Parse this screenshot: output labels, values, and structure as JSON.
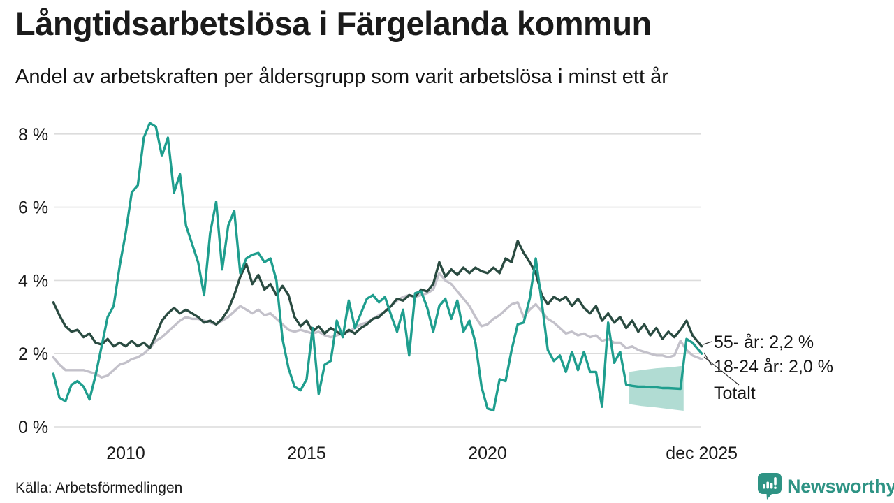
{
  "header": {
    "title": "Långtidsarbetslösa i Färgelanda kommun",
    "subtitle": "Andel av arbetskraften per åldersgrupp som varit arbetslösa i minst ett år"
  },
  "footer": {
    "source": "Källa: Arbetsförmedlingen",
    "logo_text": "Newsworthy"
  },
  "colors": {
    "accent_teal": "#1F9E8E",
    "dark_green": "#2A4B41",
    "gray": "#C3C1CA",
    "band": "#A9D8CE",
    "grid": "#DCDCDC",
    "text": "#1A1A1A",
    "leader": "#333333",
    "logo_teal": "#2E9384"
  },
  "chart_data": {
    "type": "line",
    "unit": "%",
    "grid": true,
    "x_start": 2008,
    "x_end": 2025.92,
    "points_per_year": 6,
    "ylim": [
      0,
      8.6
    ],
    "y_ticks": [
      {
        "value": 0,
        "label": "0 %"
      },
      {
        "value": 2,
        "label": "2 %"
      },
      {
        "value": 4,
        "label": "4 %"
      },
      {
        "value": 6,
        "label": "6 %"
      },
      {
        "value": 8,
        "label": "8 %"
      }
    ],
    "x_ticks": [
      {
        "value": 2010,
        "label": "2010"
      },
      {
        "value": 2015,
        "label": "2015"
      },
      {
        "value": 2020,
        "label": "2020"
      },
      {
        "value": 2025.92,
        "label": "dec 2025"
      }
    ],
    "series": [
      {
        "id": "totalt",
        "name": "Totalt",
        "color": "#C3C1CA",
        "values": [
          1.9,
          1.7,
          1.55,
          1.55,
          1.55,
          1.55,
          1.5,
          1.45,
          1.35,
          1.4,
          1.55,
          1.7,
          1.75,
          1.85,
          1.9,
          2.0,
          2.15,
          2.35,
          2.45,
          2.6,
          2.75,
          2.9,
          3.0,
          2.95,
          2.95,
          2.9,
          2.85,
          2.8,
          2.9,
          3.0,
          3.15,
          3.3,
          3.2,
          3.1,
          3.2,
          3.05,
          3.1,
          2.95,
          2.8,
          2.65,
          2.6,
          2.65,
          2.6,
          2.55,
          2.6,
          2.5,
          2.45,
          2.5,
          2.55,
          2.6,
          2.7,
          2.8,
          2.85,
          2.95,
          3.05,
          3.15,
          3.3,
          3.45,
          3.55,
          3.6,
          3.55,
          3.6,
          3.65,
          3.75,
          4.2,
          4.0,
          3.9,
          3.7,
          3.5,
          3.3,
          3.0,
          2.75,
          2.8,
          2.95,
          3.05,
          3.2,
          3.35,
          3.4,
          3.0,
          3.2,
          3.35,
          3.15,
          2.95,
          2.85,
          2.7,
          2.55,
          2.6,
          2.5,
          2.55,
          2.45,
          2.5,
          2.35,
          2.4,
          2.3,
          2.3,
          2.15,
          2.2,
          2.1,
          2.05,
          2.0,
          1.95,
          1.95,
          1.9,
          1.95,
          2.35,
          2.1,
          1.95,
          1.85
        ]
      },
      {
        "id": "55-ar",
        "name": "55- år",
        "end_value": "2,2 %",
        "color": "#2A4B41",
        "values": [
          3.4,
          3.05,
          2.75,
          2.6,
          2.65,
          2.45,
          2.55,
          2.3,
          2.25,
          2.4,
          2.2,
          2.3,
          2.2,
          2.35,
          2.2,
          2.3,
          2.15,
          2.5,
          2.9,
          3.1,
          3.25,
          3.1,
          3.2,
          3.1,
          3.0,
          2.85,
          2.9,
          2.8,
          2.95,
          3.2,
          3.6,
          4.1,
          4.45,
          3.9,
          4.15,
          3.75,
          3.9,
          3.6,
          3.85,
          3.6,
          3.0,
          2.75,
          2.9,
          2.6,
          2.75,
          2.55,
          2.7,
          2.6,
          2.5,
          2.65,
          2.55,
          2.7,
          2.8,
          2.95,
          3.0,
          3.15,
          3.3,
          3.5,
          3.45,
          3.6,
          3.55,
          3.75,
          3.7,
          3.9,
          4.5,
          4.1,
          4.3,
          4.15,
          4.35,
          4.2,
          4.35,
          4.25,
          4.2,
          4.35,
          4.2,
          4.6,
          4.5,
          5.08,
          4.75,
          4.5,
          4.2,
          3.6,
          3.35,
          3.55,
          3.45,
          3.55,
          3.3,
          3.5,
          3.25,
          3.1,
          3.3,
          2.9,
          3.1,
          2.85,
          3.0,
          2.7,
          2.9,
          2.6,
          2.8,
          2.5,
          2.7,
          2.4,
          2.6,
          2.45,
          2.65,
          2.9,
          2.5,
          2.2
        ]
      },
      {
        "id": "18-24-ar",
        "name": "18-24 år",
        "end_value": "2,0 %",
        "color": "#1F9E8E",
        "values": [
          1.45,
          0.8,
          0.7,
          1.15,
          1.25,
          1.1,
          0.75,
          1.4,
          2.2,
          3.0,
          3.3,
          4.4,
          5.3,
          6.4,
          6.6,
          7.9,
          8.3,
          8.2,
          7.4,
          7.9,
          6.4,
          6.9,
          5.5,
          5.0,
          4.5,
          3.6,
          5.3,
          6.15,
          4.3,
          5.5,
          5.9,
          4.2,
          4.6,
          4.7,
          4.75,
          4.5,
          4.6,
          4.0,
          2.4,
          1.6,
          1.1,
          1.0,
          1.3,
          2.7,
          0.9,
          1.7,
          1.8,
          2.9,
          2.45,
          3.45,
          2.7,
          3.1,
          3.5,
          3.6,
          3.4,
          3.55,
          3.05,
          2.6,
          3.2,
          1.95,
          3.65,
          3.7,
          3.25,
          2.6,
          3.3,
          3.5,
          2.95,
          3.45,
          2.6,
          2.9,
          2.3,
          1.1,
          0.5,
          0.45,
          1.3,
          1.25,
          2.1,
          2.8,
          2.85,
          3.5,
          4.6,
          3.4,
          2.1,
          1.8,
          1.95,
          1.5,
          2.05,
          1.55,
          2.05,
          1.5,
          1.5,
          0.55,
          2.85,
          1.75,
          2.05,
          1.15,
          1.12,
          1.1,
          1.1,
          1.08,
          1.08,
          1.06,
          1.06,
          1.05,
          1.04,
          2.4,
          2.3,
          2.0
        ]
      }
    ],
    "uncertainty_band": {
      "series": "18-24 år",
      "color": "#A9D8CE",
      "x": [
        2023.92,
        2024.25,
        2024.67,
        2025.08,
        2025.42
      ],
      "top": [
        1.5,
        1.55,
        1.6,
        1.63,
        1.67
      ],
      "bottom": [
        0.62,
        0.57,
        0.53,
        0.48,
        0.44
      ]
    },
    "annotations": [
      {
        "label": "55- år: 2,2 %"
      },
      {
        "label": "18-24 år: 2,0 %"
      },
      {
        "label": "Totalt"
      }
    ]
  }
}
